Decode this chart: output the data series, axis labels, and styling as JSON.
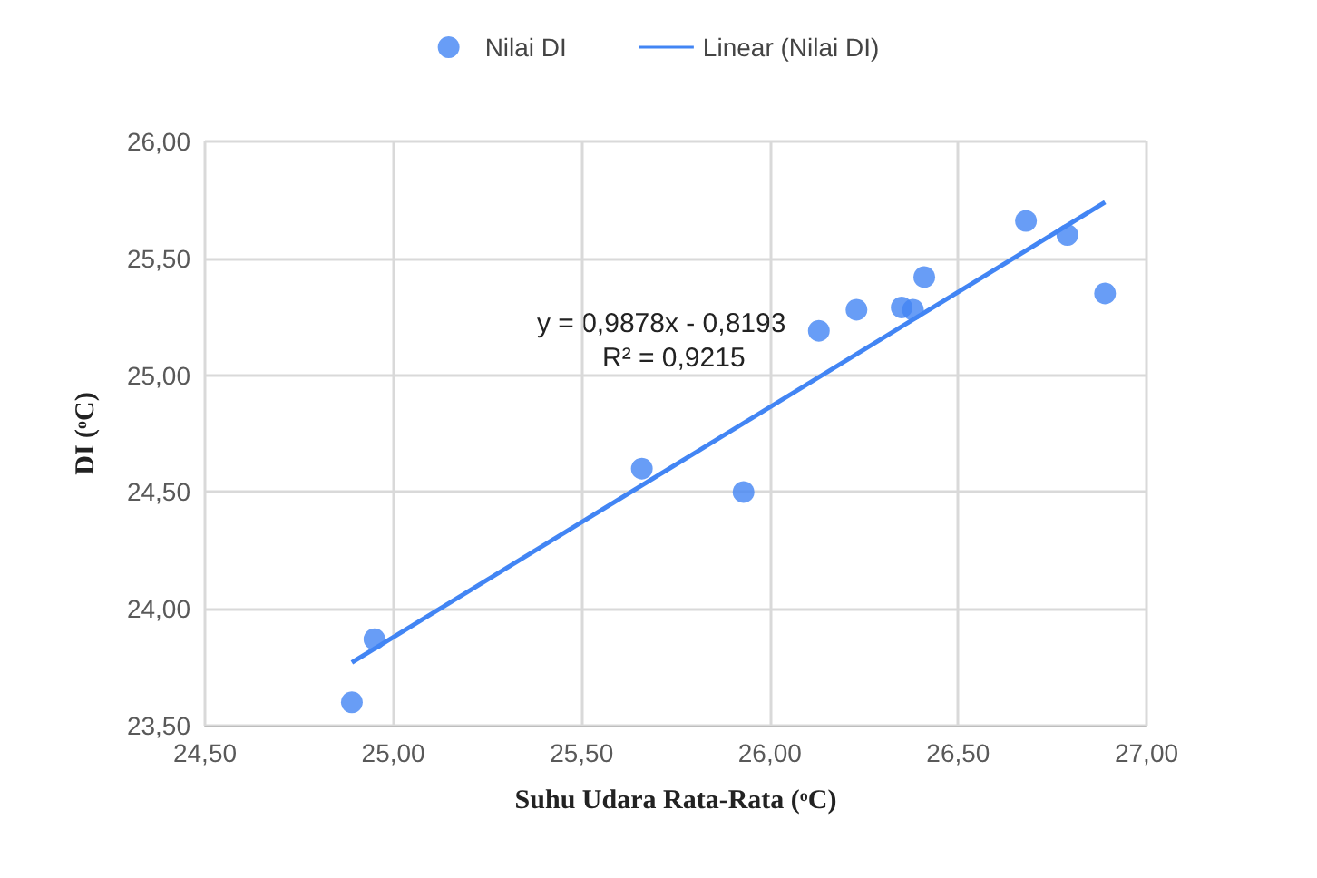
{
  "chart_data": {
    "type": "scatter",
    "xlabel": "Suhu Udara Rata-Rata ($^{o}$C)",
    "ylabel": "DI ($^{o}$C)",
    "series": [
      {
        "name": "Nilai DI",
        "marker": "circle",
        "color": "#4285f4",
        "x": [
          24.89,
          24.95,
          25.66,
          25.93,
          26.13,
          26.23,
          26.35,
          26.38,
          26.41,
          26.68,
          26.79,
          26.89
        ],
        "values": [
          23.6,
          23.87,
          24.6,
          24.5,
          25.19,
          25.28,
          25.29,
          25.28,
          25.42,
          25.66,
          25.6,
          25.35
        ]
      },
      {
        "name": "Linear (Nilai DI)",
        "type": "line",
        "color": "#4285f4",
        "x": [
          24.89,
          26.89
        ],
        "values": [
          23.77,
          25.74
        ]
      }
    ],
    "xlim": [
      24.5,
      27
    ],
    "ylim": [
      23.5,
      26
    ],
    "xticks": [
      {
        "value": 24.5,
        "label": "24,50"
      },
      {
        "value": 25,
        "label": "25,00"
      },
      {
        "value": 25.5,
        "label": "25,50"
      },
      {
        "value": 26,
        "label": "26,00"
      },
      {
        "value": 26.5,
        "label": "26,50"
      },
      {
        "value": 27,
        "label": "27,00"
      }
    ],
    "yticks": [
      {
        "value": 23.5,
        "label": "23,50"
      },
      {
        "value": 24,
        "label": "24,00"
      },
      {
        "value": 24.5,
        "label": "24,50"
      },
      {
        "value": 25,
        "label": "25,00"
      },
      {
        "value": 25.5,
        "label": "25,50"
      },
      {
        "value": 26,
        "label": "26,00"
      }
    ],
    "annotations": [
      "y = 0,9878x - 0,8193",
      "R² = 0,9215"
    ],
    "grid": true,
    "legend": "top"
  }
}
